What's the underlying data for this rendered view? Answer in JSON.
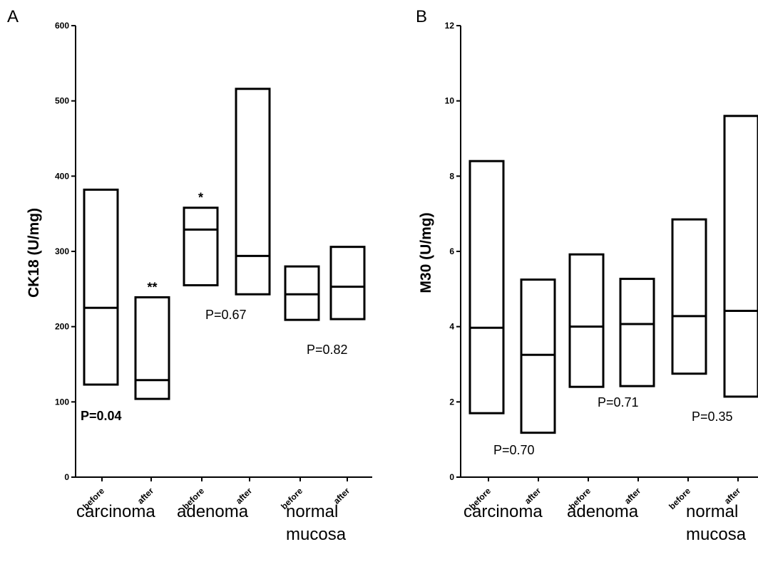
{
  "chart_data": [
    {
      "type": "box",
      "panel_label": "A",
      "ylabel": "CK18 (U/mg)",
      "ylim": [
        0,
        600
      ],
      "yticks": [
        0,
        100,
        200,
        300,
        400,
        500,
        600
      ],
      "categories": [
        "before",
        "after",
        "before",
        "after",
        "before",
        "after"
      ],
      "groups": [
        {
          "label": "carcinoma",
          "lines": [
            "carcinoma"
          ]
        },
        {
          "label": "adenoma",
          "lines": [
            "adenoma"
          ]
        },
        {
          "label": "normal mucosa",
          "lines": [
            "normal",
            "mucosa"
          ]
        }
      ],
      "boxes": [
        {
          "low": 123,
          "median": 225,
          "high": 382
        },
        {
          "low": 104,
          "median": 129,
          "high": 239
        },
        {
          "low": 255,
          "median": 329,
          "high": 358
        },
        {
          "low": 243,
          "median": 294,
          "high": 516
        },
        {
          "low": 209,
          "median": 243,
          "high": 280
        },
        {
          "low": 210,
          "median": 253,
          "high": 306
        }
      ],
      "significance": [
        {
          "box": 1,
          "text": "**"
        },
        {
          "box": 2,
          "text": "*"
        }
      ],
      "pvalues": [
        {
          "group": 0,
          "text": "P=0.04",
          "bold": true
        },
        {
          "group": 1,
          "text": "P=0.67",
          "bold": false
        },
        {
          "group": 2,
          "text": "P=0.82",
          "bold": false
        }
      ]
    },
    {
      "type": "box",
      "panel_label": "B",
      "ylabel": "M30 (U/mg)",
      "ylim": [
        0,
        12
      ],
      "yticks": [
        0,
        2,
        4,
        6,
        8,
        10,
        12
      ],
      "categories": [
        "before",
        "after",
        "before",
        "after",
        "before",
        "after"
      ],
      "groups": [
        {
          "label": "carcinoma",
          "lines": [
            "carcinoma"
          ]
        },
        {
          "label": "adenoma",
          "lines": [
            "adenoma"
          ]
        },
        {
          "label": "normal mucosa",
          "lines": [
            "normal",
            "mucosa"
          ]
        }
      ],
      "boxes": [
        {
          "low": 1.7,
          "median": 3.97,
          "high": 8.4
        },
        {
          "low": 1.18,
          "median": 3.25,
          "high": 5.25
        },
        {
          "low": 2.4,
          "median": 4.0,
          "high": 5.92
        },
        {
          "low": 2.42,
          "median": 4.07,
          "high": 5.27
        },
        {
          "low": 2.75,
          "median": 4.28,
          "high": 6.85
        },
        {
          "low": 2.14,
          "median": 4.42,
          "high": 9.6
        }
      ],
      "significance": [],
      "pvalues": [
        {
          "group": 0,
          "text": "P=0.70",
          "bold": false
        },
        {
          "group": 1,
          "text": "P=0.71",
          "bold": false
        },
        {
          "group": 2,
          "text": "P=0.35",
          "bold": false
        }
      ]
    }
  ]
}
